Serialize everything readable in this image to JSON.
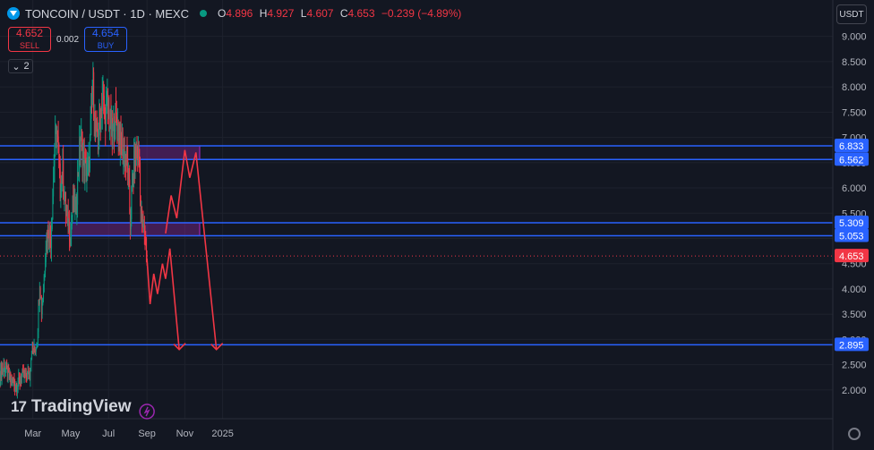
{
  "header": {
    "title": "TONCOIN / USDT · 1D · MEXC",
    "ohlc": {
      "o_label": "O",
      "o": "4.896",
      "h_label": "H",
      "h": "4.927",
      "l_label": "L",
      "l": "4.607",
      "c_label": "C",
      "c": "4.653",
      "change": "−0.239 (−4.89%)"
    }
  },
  "trade": {
    "sell_price": "4.652",
    "sell_label": "SELL",
    "spread": "0.002",
    "buy_price": "4.654",
    "buy_label": "BUY"
  },
  "indicators": {
    "count": "2"
  },
  "currency_button": "USDT",
  "logo": {
    "mark": "17",
    "text": "TradingView"
  },
  "colors": {
    "up": "#089981",
    "down": "#f23645",
    "level": "#2962ff",
    "zone": "#9c27b0",
    "projection": "#f23645",
    "background": "#131722"
  },
  "chart_data": {
    "type": "candlestick",
    "symbol": "TONCOIN/USDT",
    "timeframe": "1D",
    "exchange": "MEXC",
    "ylim": [
      1.75,
      9.1
    ],
    "y_ticks": [
      "9.000",
      "8.500",
      "8.000",
      "7.500",
      "7.000",
      "6.500",
      "6.000",
      "5.500",
      "5.000",
      "4.500",
      "4.000",
      "3.500",
      "3.000",
      "2.500",
      "2.000"
    ],
    "x_ticks": [
      {
        "label": "Mar",
        "date": "2024-03-01"
      },
      {
        "label": "May",
        "date": "2024-05-01"
      },
      {
        "label": "Jul",
        "date": "2024-07-01"
      },
      {
        "label": "Sep",
        "date": "2024-09-01"
      },
      {
        "label": "Nov",
        "date": "2024-11-01"
      },
      {
        "label": "2025",
        "date": "2025-01-01"
      }
    ],
    "x_start": "2024-01-08",
    "last_date": "2024-09-01",
    "last_price": 4.653,
    "levels": [
      {
        "value": 6.833,
        "label": "6.833"
      },
      {
        "value": 6.562,
        "label": "6.562"
      },
      {
        "value": 5.309,
        "label": "5.309"
      },
      {
        "value": 5.053,
        "label": "5.053"
      },
      {
        "value": 2.895,
        "label": "2.895"
      }
    ],
    "zones": [
      {
        "from": "2024-08-18",
        "to": "2024-11-25",
        "low": 6.562,
        "high": 6.833
      },
      {
        "from": "2024-05-01",
        "to": "2024-11-25",
        "low": 5.053,
        "high": 5.309
      }
    ],
    "price_path": [
      [
        "2024-01-08",
        2.35
      ],
      [
        "2024-01-15",
        2.45
      ],
      [
        "2024-01-22",
        2.25
      ],
      [
        "2024-01-29",
        2.15
      ],
      [
        "2024-02-05",
        2.1
      ],
      [
        "2024-02-12",
        2.25
      ],
      [
        "2024-02-19",
        2.3
      ],
      [
        "2024-02-25",
        2.3
      ],
      [
        "2024-02-28",
        2.85
      ],
      [
        "2024-03-03",
        2.75
      ],
      [
        "2024-03-08",
        3.0
      ],
      [
        "2024-03-12",
        4.2
      ],
      [
        "2024-03-15",
        3.6
      ],
      [
        "2024-03-18",
        4.0
      ],
      [
        "2024-03-22",
        5.0
      ],
      [
        "2024-03-26",
        5.2
      ],
      [
        "2024-03-30",
        5.0
      ],
      [
        "2024-04-04",
        6.5
      ],
      [
        "2024-04-08",
        7.2
      ],
      [
        "2024-04-11",
        6.7
      ],
      [
        "2024-04-14",
        6.0
      ],
      [
        "2024-04-18",
        6.3
      ],
      [
        "2024-04-22",
        5.7
      ],
      [
        "2024-04-26",
        5.3
      ],
      [
        "2024-05-01",
        5.1
      ],
      [
        "2024-05-05",
        5.8
      ],
      [
        "2024-05-09",
        5.5
      ],
      [
        "2024-05-13",
        6.4
      ],
      [
        "2024-05-17",
        7.0
      ],
      [
        "2024-05-21",
        6.6
      ],
      [
        "2024-05-25",
        6.3
      ],
      [
        "2024-05-30",
        6.4
      ],
      [
        "2024-06-03",
        7.4
      ],
      [
        "2024-06-06",
        8.0
      ],
      [
        "2024-06-09",
        7.2
      ],
      [
        "2024-06-13",
        7.0
      ],
      [
        "2024-06-17",
        7.3
      ],
      [
        "2024-06-21",
        7.9
      ],
      [
        "2024-06-25",
        7.4
      ],
      [
        "2024-06-29",
        7.6
      ],
      [
        "2024-07-03",
        7.3
      ],
      [
        "2024-07-07",
        7.0
      ],
      [
        "2024-07-11",
        7.4
      ],
      [
        "2024-07-15",
        7.3
      ],
      [
        "2024-07-19",
        7.0
      ],
      [
        "2024-07-23",
        6.8
      ],
      [
        "2024-07-27",
        6.6
      ],
      [
        "2024-07-31",
        6.5
      ],
      [
        "2024-08-03",
        5.9
      ],
      [
        "2024-08-05",
        5.3
      ],
      [
        "2024-08-08",
        6.0
      ],
      [
        "2024-08-12",
        6.6
      ],
      [
        "2024-08-16",
        6.7
      ],
      [
        "2024-08-20",
        6.5
      ],
      [
        "2024-08-22",
        5.5
      ],
      [
        "2024-08-25",
        5.2
      ],
      [
        "2024-08-29",
        5.1
      ],
      [
        "2024-09-01",
        4.653
      ]
    ],
    "projection_a": [
      [
        "2024-09-01",
        4.6
      ],
      [
        "2024-09-06",
        3.7
      ],
      [
        "2024-09-12",
        4.3
      ],
      [
        "2024-09-18",
        3.9
      ],
      [
        "2024-09-26",
        4.5
      ],
      [
        "2024-10-01",
        4.2
      ],
      [
        "2024-10-08",
        4.8
      ],
      [
        "2024-10-23",
        2.8
      ]
    ],
    "projection_b": [
      [
        "2024-10-01",
        5.1
      ],
      [
        "2024-10-10",
        5.85
      ],
      [
        "2024-10-19",
        5.4
      ],
      [
        "2024-11-01",
        6.75
      ],
      [
        "2024-11-09",
        6.2
      ],
      [
        "2024-11-19",
        6.7
      ],
      [
        "2024-12-22",
        2.8
      ]
    ],
    "arrowheads": [
      {
        "date": "2024-10-23",
        "value": 2.8
      },
      {
        "date": "2024-12-22",
        "value": 2.8
      }
    ]
  }
}
